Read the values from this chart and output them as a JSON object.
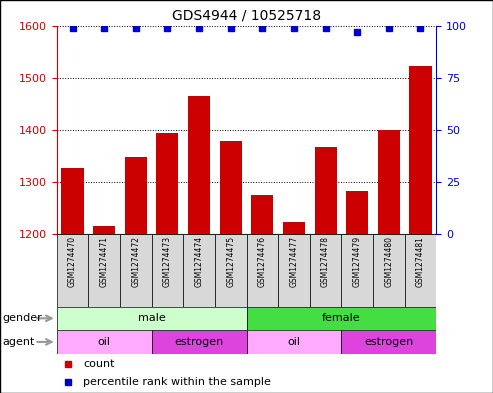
{
  "title": "GDS4944 / 10525718",
  "samples": [
    "GSM1274470",
    "GSM1274471",
    "GSM1274472",
    "GSM1274473",
    "GSM1274474",
    "GSM1274475",
    "GSM1274476",
    "GSM1274477",
    "GSM1274478",
    "GSM1274479",
    "GSM1274480",
    "GSM1274481"
  ],
  "counts": [
    1327,
    1215,
    1348,
    1393,
    1465,
    1378,
    1275,
    1222,
    1367,
    1282,
    1400,
    1523
  ],
  "percentile": [
    99,
    99,
    99,
    99,
    99,
    99,
    99,
    99,
    99,
    97,
    99,
    99
  ],
  "bar_color": "#cc0000",
  "dot_color": "#0000cc",
  "ylim_left": [
    1200,
    1600
  ],
  "ylim_right": [
    0,
    100
  ],
  "yticks_left": [
    1200,
    1300,
    1400,
    1500,
    1600
  ],
  "yticks_right": [
    0,
    25,
    50,
    75,
    100
  ],
  "gender_groups": [
    {
      "label": "male",
      "start": 0,
      "end": 6,
      "color": "#ccffcc"
    },
    {
      "label": "female",
      "start": 6,
      "end": 12,
      "color": "#44dd44"
    }
  ],
  "agent_groups": [
    {
      "label": "oil",
      "start": 0,
      "end": 3,
      "color": "#ffaaff"
    },
    {
      "label": "estrogen",
      "start": 3,
      "end": 6,
      "color": "#dd44dd"
    },
    {
      "label": "oil",
      "start": 6,
      "end": 9,
      "color": "#ffaaff"
    },
    {
      "label": "estrogen",
      "start": 9,
      "end": 12,
      "color": "#dd44dd"
    }
  ],
  "legend_count_color": "#cc0000",
  "legend_dot_color": "#0000cc",
  "axis_color_left": "#cc0000",
  "axis_color_right": "#0000cc",
  "tick_label_area_color": "#d8d8d8",
  "border_color": "#000000"
}
